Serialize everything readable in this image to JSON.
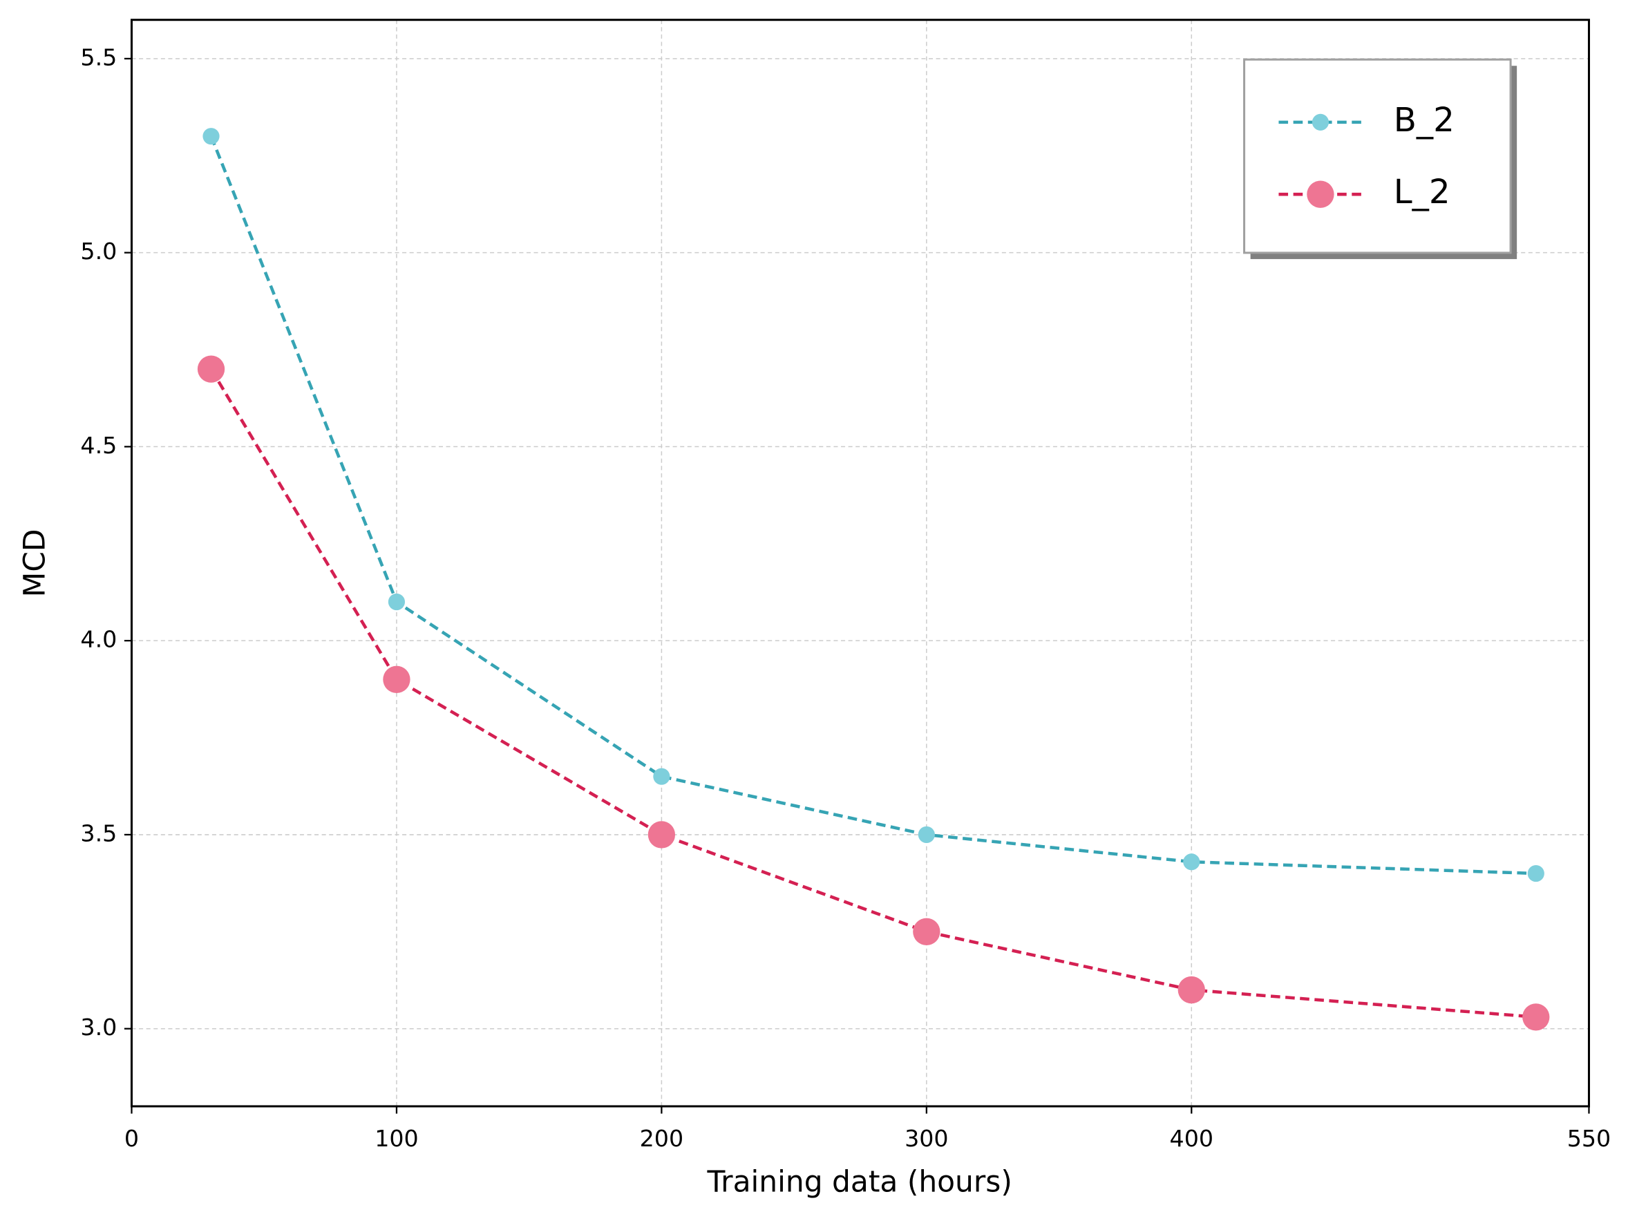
{
  "chart_data": {
    "type": "line",
    "x_label": "Training data (hours)",
    "y_label": "MCD",
    "x": [
      30,
      100,
      200,
      300,
      400,
      530
    ],
    "series": [
      {
        "name": "B_2",
        "color": "#36a4b4",
        "marker_color": "#7ecfdc",
        "marker_size": 8,
        "values": [
          5.3,
          4.1,
          3.65,
          3.5,
          3.43,
          3.4
        ]
      },
      {
        "name": "L_2",
        "color": "#d42052",
        "marker_color": "#ee7593",
        "marker_size": 13,
        "values": [
          4.7,
          3.9,
          3.5,
          3.25,
          3.1,
          3.03
        ]
      }
    ],
    "xlim": [
      0,
      550
    ],
    "xticks": [
      0,
      100,
      200,
      300,
      400,
      550
    ],
    "ylim": [
      2.8,
      5.6
    ],
    "yticks": [
      {
        "value": 3.0,
        "label": "3.0"
      },
      3.5,
      {
        "value": 4.0,
        "label": "4.0"
      },
      4.5,
      {
        "value": 5.0,
        "label": "5.0"
      },
      5.5
    ],
    "grid": true,
    "legend": "upper right"
  }
}
